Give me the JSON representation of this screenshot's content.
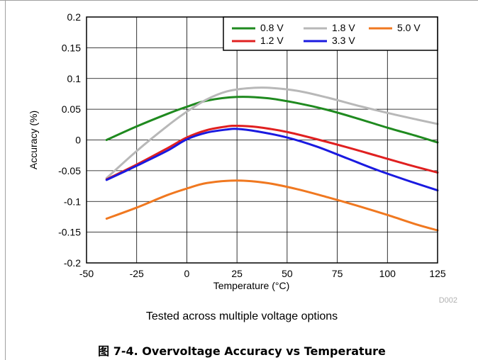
{
  "chart_data": {
    "type": "line",
    "title": "",
    "xlabel": "Temperature (°C)",
    "ylabel": "Accuracy (%)",
    "xlim": [
      -50,
      125
    ],
    "ylim": [
      -0.2,
      0.2
    ],
    "x_ticks": [
      "-50",
      "-25",
      "0",
      "25",
      "50",
      "75",
      "100",
      "125"
    ],
    "y_ticks": [
      "-0.2",
      "-0.15",
      "-0.1",
      "-0.05",
      "0",
      "0.05",
      "0.1",
      "0.15",
      "0.2"
    ],
    "grid": true,
    "legend_position": "top-right",
    "watermark": "D002",
    "series": [
      {
        "name": "0.8 V",
        "color": "#1f8a1f",
        "x": [
          -40,
          -25,
          -10,
          0,
          10,
          25,
          40,
          55,
          70,
          85,
          100,
          115,
          125
        ],
        "y": [
          0.0,
          0.022,
          0.042,
          0.054,
          0.064,
          0.07,
          0.068,
          0.06,
          0.049,
          0.035,
          0.02,
          0.006,
          -0.004
        ]
      },
      {
        "name": "1.8 V",
        "color": "#b8b8b8",
        "x": [
          -40,
          -25,
          -10,
          0,
          10,
          20,
          30,
          40,
          55,
          70,
          85,
          100,
          115,
          125
        ],
        "y": [
          -0.062,
          -0.018,
          0.022,
          0.046,
          0.066,
          0.079,
          0.084,
          0.085,
          0.08,
          0.069,
          0.056,
          0.044,
          0.033,
          0.026
        ]
      },
      {
        "name": "5.0 V",
        "color": "#f07820",
        "x": [
          -40,
          -25,
          -10,
          0,
          10,
          25,
          40,
          55,
          70,
          85,
          100,
          115,
          125
        ],
        "y": [
          -0.128,
          -0.11,
          -0.09,
          -0.079,
          -0.07,
          -0.066,
          -0.07,
          -0.08,
          -0.093,
          -0.107,
          -0.122,
          -0.138,
          -0.147
        ]
      },
      {
        "name": "1.2 V",
        "color": "#e02020",
        "x": [
          -40,
          -25,
          -10,
          0,
          10,
          20,
          25,
          35,
          50,
          65,
          80,
          95,
          110,
          125
        ],
        "y": [
          -0.064,
          -0.04,
          -0.014,
          0.004,
          0.016,
          0.022,
          0.023,
          0.021,
          0.013,
          0.001,
          -0.012,
          -0.026,
          -0.04,
          -0.053
        ]
      },
      {
        "name": "3.3 V",
        "color": "#1a1ae0",
        "x": [
          -40,
          -25,
          -10,
          0,
          10,
          20,
          25,
          35,
          50,
          65,
          80,
          95,
          110,
          125
        ],
        "y": [
          -0.065,
          -0.042,
          -0.018,
          0.001,
          0.012,
          0.017,
          0.018,
          0.014,
          0.004,
          -0.011,
          -0.03,
          -0.049,
          -0.066,
          -0.082
        ]
      }
    ]
  },
  "caption": "Tested across multiple voltage options",
  "figure_title": "图 7-4. Overvoltage Accuracy vs Temperature"
}
